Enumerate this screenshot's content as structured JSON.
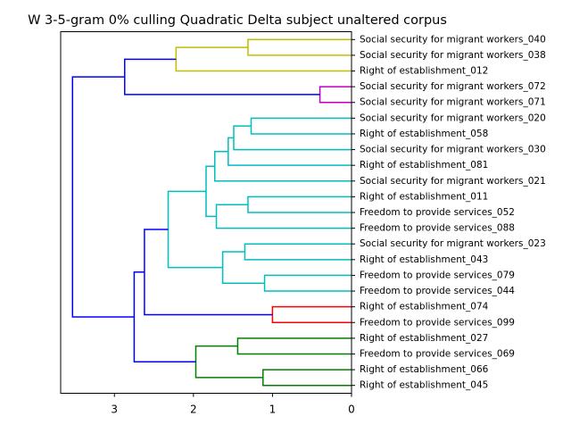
{
  "chart_data": {
    "type": "dendrogram",
    "title": "W 3-5-gram 0% culling Quadratic Delta subject unaltered corpus",
    "orientation": "left",
    "xlim": [
      3.68,
      0
    ],
    "x_ticks": [
      3,
      2,
      1,
      0
    ],
    "x_tick_labels": [
      "3",
      "2",
      "1",
      "0"
    ],
    "leaves": [
      "Social security for migrant workers_040",
      "Social security for migrant workers_038",
      "Right of establishment_012",
      "Social security for migrant workers_072",
      "Social security for migrant workers_071",
      "Social security for migrant workers_020",
      "Right of establishment_058",
      "Social security for migrant workers_030",
      "Right of establishment_081",
      "Social security for migrant workers_021",
      "Right of establishment_011",
      "Freedom to provide services_052",
      "Freedom to provide services_088",
      "Social security for migrant workers_023",
      "Right of establishment_043",
      "Freedom to provide services_079",
      "Freedom to provide services_044",
      "Right of establishment_074",
      "Freedom to provide services_099",
      "Right of establishment_027",
      "Freedom to provide services_069",
      "Right of establishment_066",
      "Right of establishment_045"
    ],
    "merges": [
      {
        "id": "m0",
        "left": "L0",
        "right": "L1",
        "height": 1.31,
        "color": "#bfbf00"
      },
      {
        "id": "m1",
        "left": "m0",
        "right": "L2",
        "height": 2.22,
        "color": "#bfbf00"
      },
      {
        "id": "m2",
        "left": "L3",
        "right": "L4",
        "height": 0.4,
        "color": "#bf00bf"
      },
      {
        "id": "m3",
        "left": "m1",
        "right": "m2",
        "height": 2.87,
        "color": "#0000ff"
      },
      {
        "id": "m4",
        "left": "L5",
        "right": "L6",
        "height": 1.27,
        "color": "#00bfbf"
      },
      {
        "id": "m5",
        "left": "m4",
        "right": "L7",
        "height": 1.49,
        "color": "#00bfbf"
      },
      {
        "id": "m6",
        "left": "m5",
        "right": "L8",
        "height": 1.56,
        "color": "#00bfbf"
      },
      {
        "id": "m7",
        "left": "m6",
        "right": "L9",
        "height": 1.73,
        "color": "#00bfbf"
      },
      {
        "id": "m8",
        "left": "L10",
        "right": "L11",
        "height": 1.31,
        "color": "#00bfbf"
      },
      {
        "id": "m9",
        "left": "m8",
        "right": "L12",
        "height": 1.71,
        "color": "#00bfbf"
      },
      {
        "id": "m10",
        "left": "m7",
        "right": "m9",
        "height": 1.84,
        "color": "#00bfbf"
      },
      {
        "id": "m11",
        "left": "L13",
        "right": "L14",
        "height": 1.35,
        "color": "#00bfbf"
      },
      {
        "id": "m12",
        "left": "L15",
        "right": "L16",
        "height": 1.1,
        "color": "#00bfbf"
      },
      {
        "id": "m13",
        "left": "m11",
        "right": "m12",
        "height": 1.63,
        "color": "#00bfbf"
      },
      {
        "id": "m14",
        "left": "m10",
        "right": "m13",
        "height": 2.32,
        "color": "#00bfbf"
      },
      {
        "id": "m15",
        "left": "L17",
        "right": "L18",
        "height": 1.0,
        "color": "#ff0000"
      },
      {
        "id": "m16",
        "left": "m14",
        "right": "m15",
        "height": 2.62,
        "color": "#0000ff"
      },
      {
        "id": "m17",
        "left": "L19",
        "right": "L20",
        "height": 1.44,
        "color": "#008000"
      },
      {
        "id": "m18",
        "left": "L21",
        "right": "L22",
        "height": 1.12,
        "color": "#008000"
      },
      {
        "id": "m19",
        "left": "m17",
        "right": "m18",
        "height": 1.97,
        "color": "#008000"
      },
      {
        "id": "m20",
        "left": "m16",
        "right": "m19",
        "height": 2.75,
        "color": "#0000ff"
      },
      {
        "id": "m21",
        "left": "m3",
        "right": "m20",
        "height": 3.53,
        "color": "#0000ff"
      }
    ]
  }
}
